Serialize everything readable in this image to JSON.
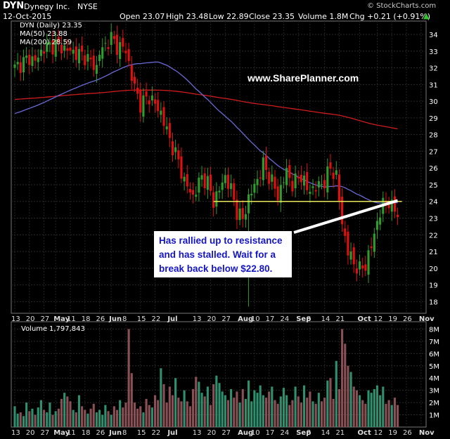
{
  "header": {
    "symbol": "DYN",
    "company": "Dynegy Inc.",
    "exchange": "NYSE",
    "date": "12-Oct-2015",
    "open": "Open 23.07",
    "high": "High 23.48",
    "low": "Low 22.89",
    "close": "Close 23.35",
    "volume": "Volume 1.8M",
    "change": "Chg +0.21 (+0.91%)",
    "change_arrow": "▲",
    "brand": "© StockCharts.com"
  },
  "legend": {
    "price": "DYN (Daily) 23.35",
    "ma50": "MA(50) 23.88",
    "ma200": "MA(200) 28.59",
    "volume_label": "Volume",
    "volume_value": "1,797,843"
  },
  "watermark": "www.SharePlanner.com",
  "annotation": "Has rallied up to resistance\nand has stalled. Wait for a\nbreak back below $22.80.",
  "colors": {
    "up": "#2e9d2e",
    "down": "#e01010",
    "ma50": "#6a6ad6",
    "ma200": "#d01c1c",
    "resistance": "#e8e85a",
    "vol_up": "#2f8f6e",
    "vol_down": "#8a5055"
  },
  "chart_data": {
    "type": "candlestick",
    "price_axis": {
      "ticks": [
        18,
        19,
        20,
        21,
        22,
        23,
        24,
        25,
        26,
        27,
        28,
        29,
        30,
        31,
        32,
        33,
        34
      ],
      "range": [
        17.3,
        34.8
      ]
    },
    "volume_axis": {
      "ticks": [
        "1M",
        "2M",
        "3M",
        "4M",
        "5M",
        "6M",
        "7M",
        "8M"
      ],
      "max": 8.6
    },
    "x_tick_labels": [
      "13",
      "20",
      "27",
      "May",
      "11",
      "18",
      "26",
      "Jun",
      "8",
      "15",
      "22",
      "Jul",
      "13",
      "20",
      "27",
      "Aug",
      "10",
      "17",
      "24",
      "Sep",
      "8",
      "14",
      "21",
      "Oct",
      "12",
      "19",
      "26",
      "Nov"
    ],
    "x_tick_index": [
      0,
      5,
      10,
      14,
      19,
      24,
      29,
      33,
      38,
      43,
      48,
      53,
      62,
      67,
      72,
      77,
      82,
      87,
      92,
      97,
      101,
      106,
      111,
      118,
      124,
      129,
      134,
      139
    ],
    "resistance_level": 24.0,
    "resistance_index_range": [
      68,
      131
    ],
    "trendline": {
      "from": [
        113,
        21.6
      ],
      "to": [
        131,
        24.05
      ]
    },
    "anchors": [
      [
        0,
        32.0
      ],
      [
        5,
        32.6
      ],
      [
        7,
        32.4
      ],
      [
        10,
        33.2
      ],
      [
        14,
        33.4
      ],
      [
        19,
        33.0
      ],
      [
        24,
        32.7
      ],
      [
        28,
        32.0
      ],
      [
        29,
        32.9
      ],
      [
        33,
        33.8
      ],
      [
        35,
        33.3
      ],
      [
        38,
        33.1
      ],
      [
        40,
        31.4
      ],
      [
        43,
        29.8
      ],
      [
        46,
        30.3
      ],
      [
        50,
        29.3
      ],
      [
        53,
        27.7
      ],
      [
        56,
        26.4
      ],
      [
        58,
        25.2
      ],
      [
        61,
        24.3
      ],
      [
        64,
        25.5
      ],
      [
        66,
        25.1
      ],
      [
        68,
        24.0
      ],
      [
        70,
        24.7
      ],
      [
        72,
        25.5
      ],
      [
        74,
        24.7
      ],
      [
        76,
        23.4
      ],
      [
        78,
        22.9
      ],
      [
        80,
        24.2
      ],
      [
        83,
        25.3
      ],
      [
        85,
        26.2
      ],
      [
        88,
        25.2
      ],
      [
        90,
        24.3
      ],
      [
        93,
        25.8
      ],
      [
        95,
        25.0
      ],
      [
        98,
        25.6
      ],
      [
        100,
        24.7
      ],
      [
        103,
        24.8
      ],
      [
        106,
        25.2
      ],
      [
        108,
        26.0
      ],
      [
        110,
        25.5
      ],
      [
        112,
        22.7
      ],
      [
        114,
        21.0
      ],
      [
        116,
        20.3
      ],
      [
        118,
        19.9
      ],
      [
        120,
        20.2
      ],
      [
        122,
        21.3
      ],
      [
        124,
        22.8
      ],
      [
        126,
        23.8
      ],
      [
        128,
        24.0
      ],
      [
        129,
        23.6
      ],
      [
        131,
        23.35
      ]
    ],
    "low_spike": {
      "index": 80,
      "low": 17.7
    },
    "x_count": 132,
    "volume": [
      [
        0,
        1.7
      ],
      [
        1,
        1.1
      ],
      [
        2,
        1.2
      ],
      [
        3,
        0.9
      ],
      [
        4,
        2.0
      ],
      [
        5,
        1.3
      ],
      [
        6,
        1.5
      ],
      [
        7,
        1.0
      ],
      [
        8,
        1.6
      ],
      [
        9,
        2.2
      ],
      [
        10,
        1.4
      ],
      [
        11,
        1.2
      ],
      [
        12,
        2.0
      ],
      [
        13,
        1.0
      ],
      [
        14,
        1.3
      ],
      [
        15,
        1.5
      ],
      [
        16,
        2.3
      ],
      [
        17,
        2.8
      ],
      [
        18,
        2.5
      ],
      [
        19,
        2.1
      ],
      [
        20,
        1.4
      ],
      [
        21,
        1.2
      ],
      [
        22,
        2.6
      ],
      [
        23,
        1.7
      ],
      [
        24,
        1.4
      ],
      [
        25,
        1.1
      ],
      [
        26,
        1.5
      ],
      [
        27,
        1.9
      ],
      [
        28,
        1.2
      ],
      [
        29,
        1.4
      ],
      [
        30,
        1.0
      ],
      [
        31,
        1.8
      ],
      [
        32,
        1.3
      ],
      [
        33,
        1.0
      ],
      [
        34,
        1.7
      ],
      [
        35,
        1.4
      ],
      [
        36,
        2.2
      ],
      [
        37,
        1.6
      ],
      [
        38,
        2.0
      ],
      [
        39,
        8.0
      ],
      [
        40,
        4.4
      ],
      [
        41,
        2.0
      ],
      [
        42,
        1.5
      ],
      [
        43,
        1.7
      ],
      [
        44,
        1.2
      ],
      [
        45,
        2.3
      ],
      [
        46,
        1.8
      ],
      [
        47,
        1.6
      ],
      [
        48,
        2.6
      ],
      [
        49,
        2.2
      ],
      [
        50,
        4.8
      ],
      [
        51,
        3.5
      ],
      [
        52,
        2.0
      ],
      [
        53,
        3.3
      ],
      [
        54,
        2.6
      ],
      [
        55,
        4.0
      ],
      [
        56,
        2.4
      ],
      [
        57,
        2.1
      ],
      [
        58,
        3.0
      ],
      [
        59,
        2.1
      ],
      [
        60,
        1.7
      ],
      [
        61,
        3.1
      ],
      [
        62,
        4.1
      ],
      [
        63,
        3.7
      ],
      [
        64,
        2.8
      ],
      [
        65,
        2.5
      ],
      [
        66,
        3.3
      ],
      [
        67,
        1.8
      ],
      [
        68,
        3.5
      ],
      [
        69,
        4.2
      ],
      [
        70,
        3.6
      ],
      [
        71,
        2.9
      ],
      [
        72,
        2.6
      ],
      [
        73,
        2.2
      ],
      [
        74,
        3.1
      ],
      [
        75,
        2.4
      ],
      [
        76,
        2.9
      ],
      [
        77,
        2.0
      ],
      [
        78,
        3.1
      ],
      [
        79,
        2.3
      ],
      [
        80,
        3.8
      ],
      [
        81,
        2.1
      ],
      [
        82,
        3.0
      ],
      [
        83,
        2.8
      ],
      [
        84,
        3.4
      ],
      [
        85,
        2.6
      ],
      [
        86,
        2.4
      ],
      [
        87,
        2.9
      ],
      [
        88,
        3.3
      ],
      [
        89,
        2.2
      ],
      [
        90,
        1.9
      ],
      [
        91,
        2.5
      ],
      [
        92,
        3.2
      ],
      [
        93,
        2.6
      ],
      [
        94,
        1.8
      ],
      [
        95,
        2.2
      ],
      [
        96,
        3.3
      ],
      [
        97,
        2.5
      ],
      [
        98,
        2.0
      ],
      [
        99,
        3.4
      ],
      [
        100,
        2.4
      ],
      [
        101,
        2.9
      ],
      [
        102,
        2.1
      ],
      [
        103,
        1.9
      ],
      [
        104,
        2.8
      ],
      [
        105,
        2.1
      ],
      [
        106,
        2.4
      ],
      [
        107,
        3.8
      ],
      [
        108,
        4.0
      ],
      [
        109,
        2.3
      ],
      [
        110,
        5.4
      ],
      [
        111,
        3.1
      ],
      [
        112,
        8.0
      ],
      [
        113,
        6.8
      ],
      [
        114,
        5.0
      ],
      [
        115,
        4.5
      ],
      [
        116,
        3.3
      ],
      [
        117,
        3.0
      ],
      [
        118,
        2.6
      ],
      [
        119,
        2.2
      ],
      [
        120,
        1.9
      ],
      [
        121,
        3.0
      ],
      [
        122,
        2.8
      ],
      [
        123,
        3.1
      ],
      [
        124,
        3.4
      ],
      [
        125,
        2.6
      ],
      [
        126,
        3.3
      ],
      [
        127,
        1.9
      ],
      [
        128,
        2.2
      ],
      [
        129,
        1.8
      ],
      [
        130,
        2.4
      ],
      [
        131,
        1.8
      ]
    ]
  }
}
